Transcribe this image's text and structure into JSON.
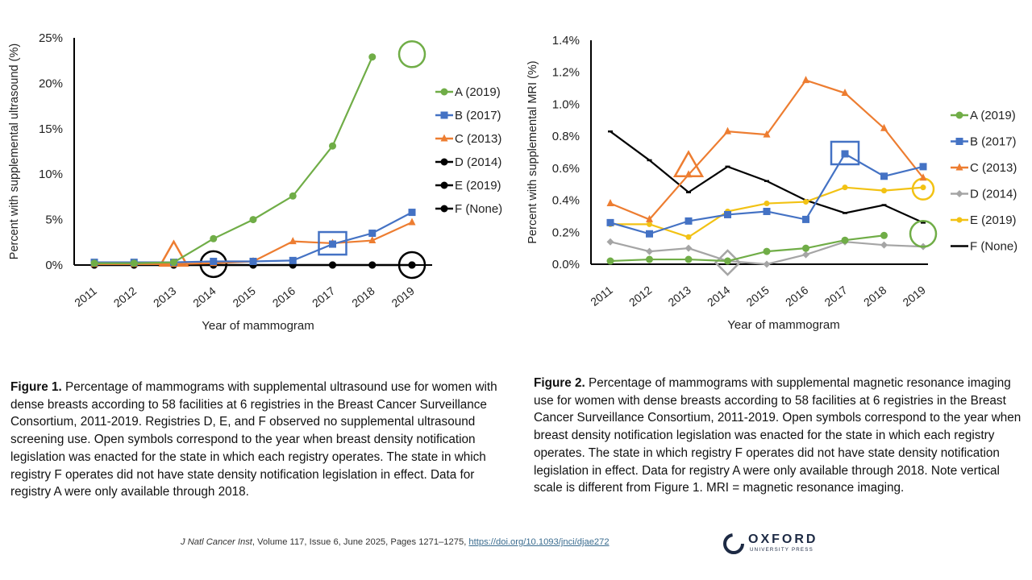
{
  "chart_data": [
    {
      "type": "line",
      "title": "",
      "xlabel": "Year of mammogram",
      "ylabel": "Percent with supplemental ultrasound (%)",
      "ylim": [
        0,
        25
      ],
      "yticks": [
        0,
        5,
        10,
        15,
        20,
        25
      ],
      "ytick_labels": [
        "0%",
        "5%",
        "10%",
        "15%",
        "20%",
        "25%"
      ],
      "x": [
        "2011",
        "2012",
        "2013",
        "2014",
        "2015",
        "2016",
        "2017",
        "2018",
        "2019"
      ],
      "grid": false,
      "legend_position": "right",
      "series": [
        {
          "name": "A (2019)",
          "color": "#70ad47",
          "marker": "circle",
          "values": [
            0.2,
            0.2,
            0.3,
            2.9,
            5.0,
            7.6,
            13.1,
            22.9,
            null
          ],
          "open_marker_year": "2019",
          "open_marker_value": 23.2
        },
        {
          "name": "B (2017)",
          "color": "#4472c4",
          "marker": "square",
          "values": [
            0.3,
            0.3,
            0.3,
            0.4,
            0.4,
            0.5,
            2.3,
            3.5,
            5.8
          ],
          "open_marker_year": "2017",
          "open_marker_value": 2.3
        },
        {
          "name": "C (2013)",
          "color": "#ed7d31",
          "marker": "triangle",
          "values": [
            0.1,
            0.1,
            0.1,
            0.2,
            0.4,
            2.6,
            2.4,
            2.7,
            4.7
          ],
          "open_marker_year": "2013",
          "open_marker_value": 0.1
        },
        {
          "name": "D (2014)",
          "color": "#000000",
          "marker": "circle",
          "values": [
            0,
            0,
            0,
            0,
            0,
            0,
            0,
            0,
            0
          ],
          "open_marker_year": "2014",
          "open_marker_value": 0.1
        },
        {
          "name": "E (2019)",
          "color": "#000000",
          "marker": "circle",
          "values": [
            0,
            0,
            0,
            0,
            0,
            0,
            0,
            0,
            0
          ],
          "open_marker_year": "2019",
          "open_marker_value": 0
        },
        {
          "name": "F (None)",
          "color": "#000000",
          "marker": "circle",
          "values": [
            0,
            0,
            0,
            0,
            0,
            0,
            0,
            0,
            0
          ]
        }
      ]
    },
    {
      "type": "line",
      "title": "",
      "xlabel": "Year of mammogram",
      "ylabel": "Percent with supplemental MRI (%)",
      "ylim": [
        0,
        1.4
      ],
      "yticks": [
        0,
        0.2,
        0.4,
        0.6,
        0.8,
        1.0,
        1.2,
        1.4
      ],
      "ytick_labels": [
        "0.0%",
        "0.2%",
        "0.4%",
        "0.6%",
        "0.8%",
        "1.0%",
        "1.2%",
        "1.4%"
      ],
      "x": [
        "2011",
        "2012",
        "2013",
        "2014",
        "2015",
        "2016",
        "2017",
        "2018",
        "2019"
      ],
      "grid": false,
      "legend_position": "right",
      "series": [
        {
          "name": "A (2019)",
          "color": "#70ad47",
          "marker": "circle",
          "values": [
            0.02,
            0.03,
            0.03,
            0.02,
            0.08,
            0.1,
            0.15,
            0.18,
            null
          ],
          "open_marker_year": "2019",
          "open_marker_value": 0.19
        },
        {
          "name": "B (2017)",
          "color": "#4472c4",
          "marker": "square",
          "values": [
            0.26,
            0.19,
            0.27,
            0.31,
            0.33,
            0.28,
            0.69,
            0.55,
            0.61
          ],
          "open_marker_year": "2017",
          "open_marker_value": 0.69
        },
        {
          "name": "C (2013)",
          "color": "#ed7d31",
          "marker": "triangle",
          "values": [
            0.38,
            0.28,
            0.56,
            0.83,
            0.81,
            1.15,
            1.07,
            0.85,
            0.54
          ],
          "open_marker_year": "2013",
          "open_marker_value": 0.56
        },
        {
          "name": "D (2014)",
          "color": "#a5a5a5",
          "marker": "diamond",
          "values": [
            0.14,
            0.08,
            0.1,
            0.02,
            0.0,
            0.06,
            0.14,
            0.12,
            0.11
          ],
          "open_marker_year": "2014",
          "open_marker_value": 0.01
        },
        {
          "name": "E (2019)",
          "color": "#f2c214",
          "marker": "dot",
          "values": [
            0.25,
            0.25,
            0.17,
            0.33,
            0.38,
            0.39,
            0.48,
            0.46,
            0.48
          ],
          "open_marker_year": "2019",
          "open_marker_value": 0.47
        },
        {
          "name": "F (None)",
          "color": "#000000",
          "marker": "dash",
          "values": [
            0.83,
            0.65,
            0.45,
            0.61,
            0.52,
            0.4,
            0.32,
            0.37,
            0.26
          ]
        }
      ]
    }
  ],
  "captions": {
    "fig1_label": "Figure 1.",
    "fig1_text": " Percentage of mammograms with supplemental ultrasound use for women with dense breasts according to 58 facilities at 6 registries in the Breast Cancer Surveillance Consortium, 2011-2019. Registries D, E, and F observed no supplemental ultrasound screening use. Open symbols correspond to the year when breast density notification legislation was enacted for the state in which each registry operates. The state in which registry F operates did not have state density notification legislation in effect. Data for registry A were only available through 2018.",
    "fig2_label": "Figure 2.",
    "fig2_text": " Percentage of mammograms with supplemental magnetic resonance imaging use for women with dense breasts according to 58 facilities at 6 registries in the Breast Cancer Surveillance Consortium, 2011-2019. Open symbols correspond to the year when breast density notification legislation was enacted for the state in which each registry operates. The state in which registry F operates did not have state density notification legislation in effect. Data for registry A were only available through 2018. Note vertical scale is different from Figure 1. MRI = magnetic resonance imaging."
  },
  "footer": {
    "journal": "J Natl Cancer Inst",
    "citation": ", Volume 117, Issue 6, June 2025, Pages 1271–1275, ",
    "doi_link": "https://doi.org/10.1093/jnci/djae272"
  },
  "logo": {
    "name": "OXFORD",
    "sub": "UNIVERSITY PRESS"
  }
}
